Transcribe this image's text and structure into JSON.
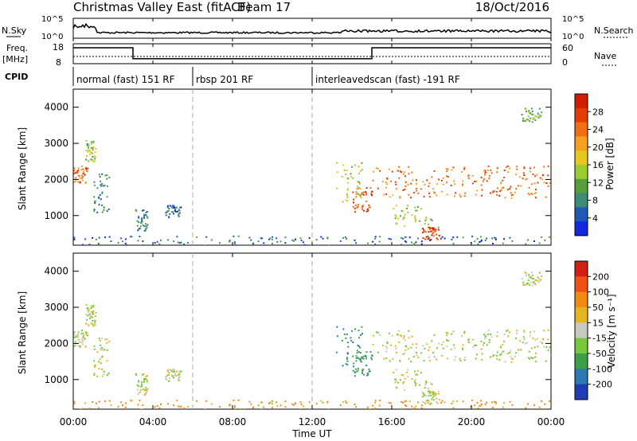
{
  "title": "Christmas Valley East (fitACF)",
  "beam_label": "Beam 17",
  "date": "18/Oct/2016",
  "top_panels": {
    "nsky_label": "N.Sky",
    "nsearch_label": "N.Search",
    "nsky_ticks": [
      "10^5",
      "10^0"
    ],
    "nsearch_ticks": [
      "10^5",
      "10^0"
    ],
    "freq_label_1": "Freq.",
    "freq_label_2": "[MHz]",
    "freq_ticks": [
      "18",
      "8"
    ],
    "nave_label": "Nave",
    "nave_ticks": [
      "60",
      "0"
    ],
    "cpid_label": "CPID",
    "freq_steps": [
      {
        "t": 0.0,
        "mhz": 16.0
      },
      {
        "t": 3.0,
        "mhz": 10.5
      },
      {
        "t": 15.0,
        "mhz": 16.0
      },
      {
        "t": 24.0,
        "mhz": 16.0
      }
    ],
    "cpid_segments": [
      {
        "start": 0,
        "end": 6,
        "label": "normal (fast) 151 RF"
      },
      {
        "start": 6,
        "end": 12,
        "label": "rbsp 201 RF"
      },
      {
        "start": 12,
        "end": 24,
        "label": "interleavedscan (fast) -191 RF"
      }
    ]
  },
  "x_axis": {
    "label": "Time UT",
    "ticks": [
      "00:00",
      "04:00",
      "08:00",
      "12:00",
      "16:00",
      "20:00",
      "00:00"
    ],
    "range_hours": [
      0,
      24
    ]
  },
  "power_panel": {
    "ylabel": "Slant Range [km]",
    "yticks": [
      "1000",
      "2000",
      "3000",
      "4000"
    ],
    "colorbar_label": "Power [dB]",
    "colorbar_ticks": [
      "4",
      "8",
      "12",
      "16",
      "20",
      "24",
      "28"
    ],
    "colors": [
      "#1428e0",
      "#1e5ab4",
      "#3c8c78",
      "#56a03c",
      "#9acd32",
      "#e6c81e",
      "#f5a01e",
      "#f06e14",
      "#e63c0a",
      "#d21e00"
    ]
  },
  "velocity_panel": {
    "ylabel": "Slant Range [km]",
    "yticks": [
      "1000",
      "2000",
      "3000",
      "4000"
    ],
    "colorbar_label": "Velocity [m s⁻¹]",
    "colorbar_ticks": [
      "200",
      "100",
      "50",
      "15",
      "-15",
      "-50",
      "-100",
      "-200"
    ],
    "colors": [
      "#1e3cb4",
      "#2a78b4",
      "#3ca04a",
      "#78c83c",
      "#c8c8c0",
      "#e6b41e",
      "#f08c14",
      "#f05014",
      "#d21e14"
    ]
  },
  "chart_data": {
    "type": "heatmap",
    "title": "Christmas Valley East (fitACF)",
    "xlabel": "Time UT",
    "ylabel": "Slant Range [km]",
    "xlim_hours": [
      0,
      24
    ],
    "ylim_km": [
      180,
      4500
    ],
    "power_scale_db": [
      0,
      32
    ],
    "velocity_scale_ms": [
      -250,
      250
    ],
    "scatter_regions": [
      {
        "t0": 0.0,
        "t1": 0.7,
        "r0": 1900,
        "r1": 2400,
        "power_db": 24,
        "velocity": 0
      },
      {
        "t0": 0.6,
        "t1": 1.1,
        "r0": 2500,
        "r1": 3100,
        "power_db": 14,
        "velocity": 0
      },
      {
        "t0": 1.0,
        "t1": 1.8,
        "r0": 1100,
        "r1": 2200,
        "power_db": 8,
        "velocity": 0
      },
      {
        "t0": 3.1,
        "t1": 3.7,
        "r0": 600,
        "r1": 1200,
        "power_db": 8,
        "velocity": 0
      },
      {
        "t0": 4.6,
        "t1": 5.4,
        "r0": 950,
        "r1": 1300,
        "power_db": 6,
        "velocity": 0
      },
      {
        "t0": 13.2,
        "t1": 14.5,
        "r0": 1400,
        "r1": 2500,
        "power_db": 16,
        "velocity": 70
      },
      {
        "t0": 14.0,
        "t1": 15.0,
        "r0": 1100,
        "r1": 1800,
        "power_db": 26,
        "velocity": 70
      },
      {
        "t0": 15.0,
        "t1": 24.0,
        "r0": 1500,
        "r1": 2400,
        "power_db": 24,
        "velocity": 0
      },
      {
        "t0": 16.0,
        "t1": 18.0,
        "r0": 700,
        "r1": 1300,
        "power_db": 14,
        "velocity": 0
      },
      {
        "t0": 17.5,
        "t1": 18.5,
        "r0": 350,
        "r1": 700,
        "power_db": 28,
        "velocity": 0
      },
      {
        "t0": 22.5,
        "t1": 23.5,
        "r0": 3600,
        "r1": 4000,
        "power_db": 12,
        "velocity": 0
      },
      {
        "t0": 0.0,
        "t1": 24.0,
        "r0": 180,
        "r1": 450,
        "power_db": 6,
        "velocity": -40
      }
    ]
  }
}
